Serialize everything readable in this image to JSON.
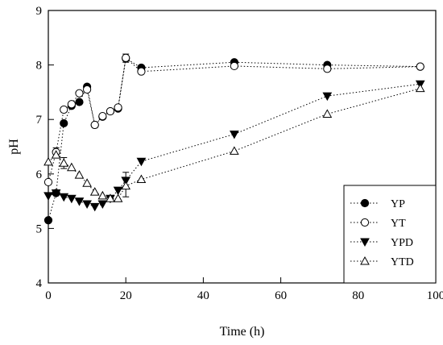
{
  "chart_data": {
    "type": "line",
    "title": "",
    "xlabel": "Time (h)",
    "ylabel": "pH",
    "xlim": [
      0,
      100
    ],
    "ylim": [
      4,
      9
    ],
    "xticks": [
      0,
      20,
      40,
      60,
      80,
      100
    ],
    "yticks": [
      4,
      5,
      6,
      7,
      8,
      9
    ],
    "grid": false,
    "legend_position": "bottom-right",
    "series": [
      {
        "name": "YP",
        "marker": "filled-circle",
        "x": [
          0,
          2,
          4,
          6,
          8,
          10,
          12,
          14,
          16,
          18,
          20,
          24,
          48,
          72,
          96
        ],
        "y": [
          5.15,
          5.65,
          6.93,
          7.25,
          7.32,
          7.6,
          6.9,
          7.05,
          7.15,
          7.2,
          8.12,
          7.95,
          8.05,
          8.0,
          7.97
        ]
      },
      {
        "name": "YT",
        "marker": "open-circle",
        "x": [
          0,
          2,
          4,
          6,
          8,
          10,
          12,
          14,
          16,
          18,
          20,
          24,
          48,
          72,
          96
        ],
        "y": [
          5.85,
          6.4,
          7.18,
          7.28,
          7.48,
          7.55,
          6.9,
          7.06,
          7.15,
          7.22,
          8.13,
          7.88,
          7.98,
          7.93,
          7.97
        ]
      },
      {
        "name": "YPD",
        "marker": "filled-triangle-down",
        "x": [
          0,
          2,
          4,
          6,
          8,
          10,
          12,
          14,
          16,
          18,
          20,
          24,
          48,
          72,
          96
        ],
        "y": [
          5.6,
          5.65,
          5.58,
          5.55,
          5.5,
          5.45,
          5.4,
          5.45,
          5.55,
          5.7,
          5.88,
          6.23,
          6.73,
          7.43,
          7.65
        ]
      },
      {
        "name": "YTD",
        "marker": "open-triangle-up",
        "x": [
          0,
          2,
          4,
          6,
          8,
          10,
          12,
          14,
          16,
          18,
          20,
          24,
          48,
          72,
          96
        ],
        "y": [
          6.22,
          6.35,
          6.2,
          6.12,
          5.98,
          5.83,
          5.67,
          5.6,
          5.55,
          5.55,
          5.78,
          5.9,
          6.42,
          7.1,
          7.57
        ]
      }
    ],
    "error_bars": [
      {
        "series": "YT",
        "x": 2,
        "low": 6.3,
        "high": 6.48
      },
      {
        "series": "YTD",
        "x": 4,
        "low": 6.1,
        "high": 6.3
      },
      {
        "series": "YPD",
        "x": 20,
        "low": 5.58,
        "high": 6.03
      },
      {
        "series": "YT",
        "x": 20,
        "low": 8.05,
        "high": 8.2
      }
    ]
  }
}
